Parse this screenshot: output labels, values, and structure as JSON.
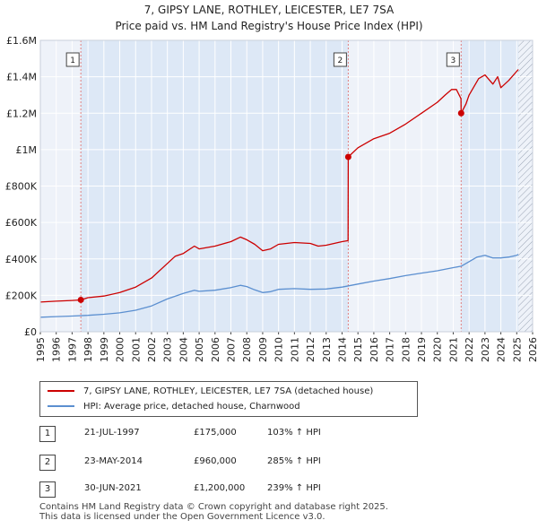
{
  "header": {
    "title_line1": "7, GIPSY LANE, ROTHLEY, LEICESTER, LE7 7SA",
    "title_line2": "Price paid vs. HM Land Registry's House Price Index (HPI)"
  },
  "chart_data": {
    "type": "line",
    "title": "7, GIPSY LANE, ROTHLEY, LEICESTER, LE7 7SA — Price paid vs. HM Land Registry's House Price Index (HPI)",
    "xlabel": "",
    "ylabel": "",
    "xlim": [
      1995,
      2026
    ],
    "ylim": [
      0,
      1600000
    ],
    "x_ticks": [
      "1995",
      "1996",
      "1997",
      "1998",
      "1999",
      "2000",
      "2001",
      "2002",
      "2003",
      "2004",
      "2005",
      "2006",
      "2007",
      "2008",
      "2009",
      "2010",
      "2011",
      "2012",
      "2013",
      "2014",
      "2015",
      "2016",
      "2017",
      "2018",
      "2019",
      "2020",
      "2021",
      "2022",
      "2023",
      "2024",
      "2025",
      "2026"
    ],
    "y_ticks": [
      {
        "value": 0,
        "label": "£0"
      },
      {
        "value": 200000,
        "label": "£200K"
      },
      {
        "value": 400000,
        "label": "£400K"
      },
      {
        "value": 600000,
        "label": "£600K"
      },
      {
        "value": 800000,
        "label": "£800K"
      },
      {
        "value": 1000000,
        "label": "£1M"
      },
      {
        "value": 1200000,
        "label": "£1.2M"
      },
      {
        "value": 1400000,
        "label": "£1.4M"
      },
      {
        "value": 1600000,
        "label": "£1.6M"
      }
    ],
    "shaded_ranges": [
      [
        1997.55,
        2014.39
      ],
      [
        2021.5,
        2025.1
      ]
    ],
    "hatch_from": 2025.1,
    "colors": {
      "property": "#cc0000",
      "hpi": "#5b8fd0",
      "shade": "#dde8f6",
      "grid": "#ffffff",
      "marker_line": "#e08080"
    },
    "series": [
      {
        "name": "7, GIPSY LANE, ROTHLEY, LEICESTER, LE7 7SA (detached house)",
        "x": [
          1995,
          1996,
          1997,
          1997.55,
          1998,
          1999,
          2000,
          2001,
          2002,
          2003,
          2003.5,
          2004,
          2004.7,
          2005,
          2006,
          2007,
          2007.6,
          2008,
          2008.5,
          2009,
          2009.5,
          2010,
          2011,
          2012,
          2012.5,
          2013,
          2014,
          2014.38,
          2014.39,
          2015,
          2016,
          2017,
          2018,
          2019,
          2020,
          2020.5,
          2020.9,
          2021.2,
          2021.49,
          2021.5,
          2021.8,
          2022,
          2022.6,
          2023,
          2023.5,
          2023.8,
          2024,
          2024.5,
          2025,
          2025.1
        ],
        "values": [
          163000,
          168000,
          172000,
          175000,
          187000,
          196000,
          215000,
          245000,
          295000,
          375000,
          415000,
          430000,
          470000,
          455000,
          470000,
          495000,
          520000,
          505000,
          480000,
          445000,
          455000,
          480000,
          490000,
          485000,
          470000,
          475000,
          495000,
          500000,
          960000,
          1010000,
          1060000,
          1090000,
          1140000,
          1200000,
          1260000,
          1300000,
          1330000,
          1330000,
          1280000,
          1200000,
          1250000,
          1300000,
          1390000,
          1410000,
          1360000,
          1400000,
          1340000,
          1380000,
          1430000,
          1440000
        ]
      },
      {
        "name": "HPI: Average price, detached house, Charnwood",
        "x": [
          1995,
          1996,
          1997,
          1998,
          1999,
          2000,
          2001,
          2002,
          2003,
          2004,
          2004.7,
          2005,
          2006,
          2007,
          2007.6,
          2008,
          2008.5,
          2009,
          2009.5,
          2010,
          2011,
          2012,
          2013,
          2014,
          2015,
          2016,
          2017,
          2018,
          2019,
          2020,
          2021,
          2021.5,
          2022,
          2022.5,
          2023,
          2023.5,
          2024,
          2024.5,
          2025,
          2025.1
        ],
        "values": [
          80000,
          83000,
          86000,
          90000,
          96000,
          104000,
          118000,
          142000,
          180000,
          210000,
          228000,
          222000,
          228000,
          242000,
          255000,
          248000,
          230000,
          215000,
          220000,
          233000,
          237000,
          233000,
          235000,
          245000,
          262000,
          278000,
          292000,
          308000,
          322000,
          335000,
          352000,
          360000,
          385000,
          410000,
          420000,
          405000,
          405000,
          410000,
          420000,
          425000
        ]
      }
    ],
    "sales": [
      {
        "label": "1",
        "x": 1997.55,
        "value": 175000
      },
      {
        "label": "2",
        "x": 2014.39,
        "value": 960000
      },
      {
        "label": "3",
        "x": 2021.5,
        "value": 1200000
      }
    ]
  },
  "legend": {
    "property_label": "7, GIPSY LANE, ROTHLEY, LEICESTER, LE7 7SA (detached house)",
    "hpi_label": "HPI: Average price, detached house, Charnwood"
  },
  "transactions": [
    {
      "num": "1",
      "date": "21-JUL-1997",
      "price": "£175,000",
      "hpi": "103% ↑ HPI"
    },
    {
      "num": "2",
      "date": "23-MAY-2014",
      "price": "£960,000",
      "hpi": "285% ↑ HPI"
    },
    {
      "num": "3",
      "date": "30-JUN-2021",
      "price": "£1,200,000",
      "hpi": "239% ↑ HPI"
    }
  ],
  "footer": {
    "line1": "Contains HM Land Registry data © Crown copyright and database right 2025.",
    "line2": "This data is licensed under the Open Government Licence v3.0."
  }
}
